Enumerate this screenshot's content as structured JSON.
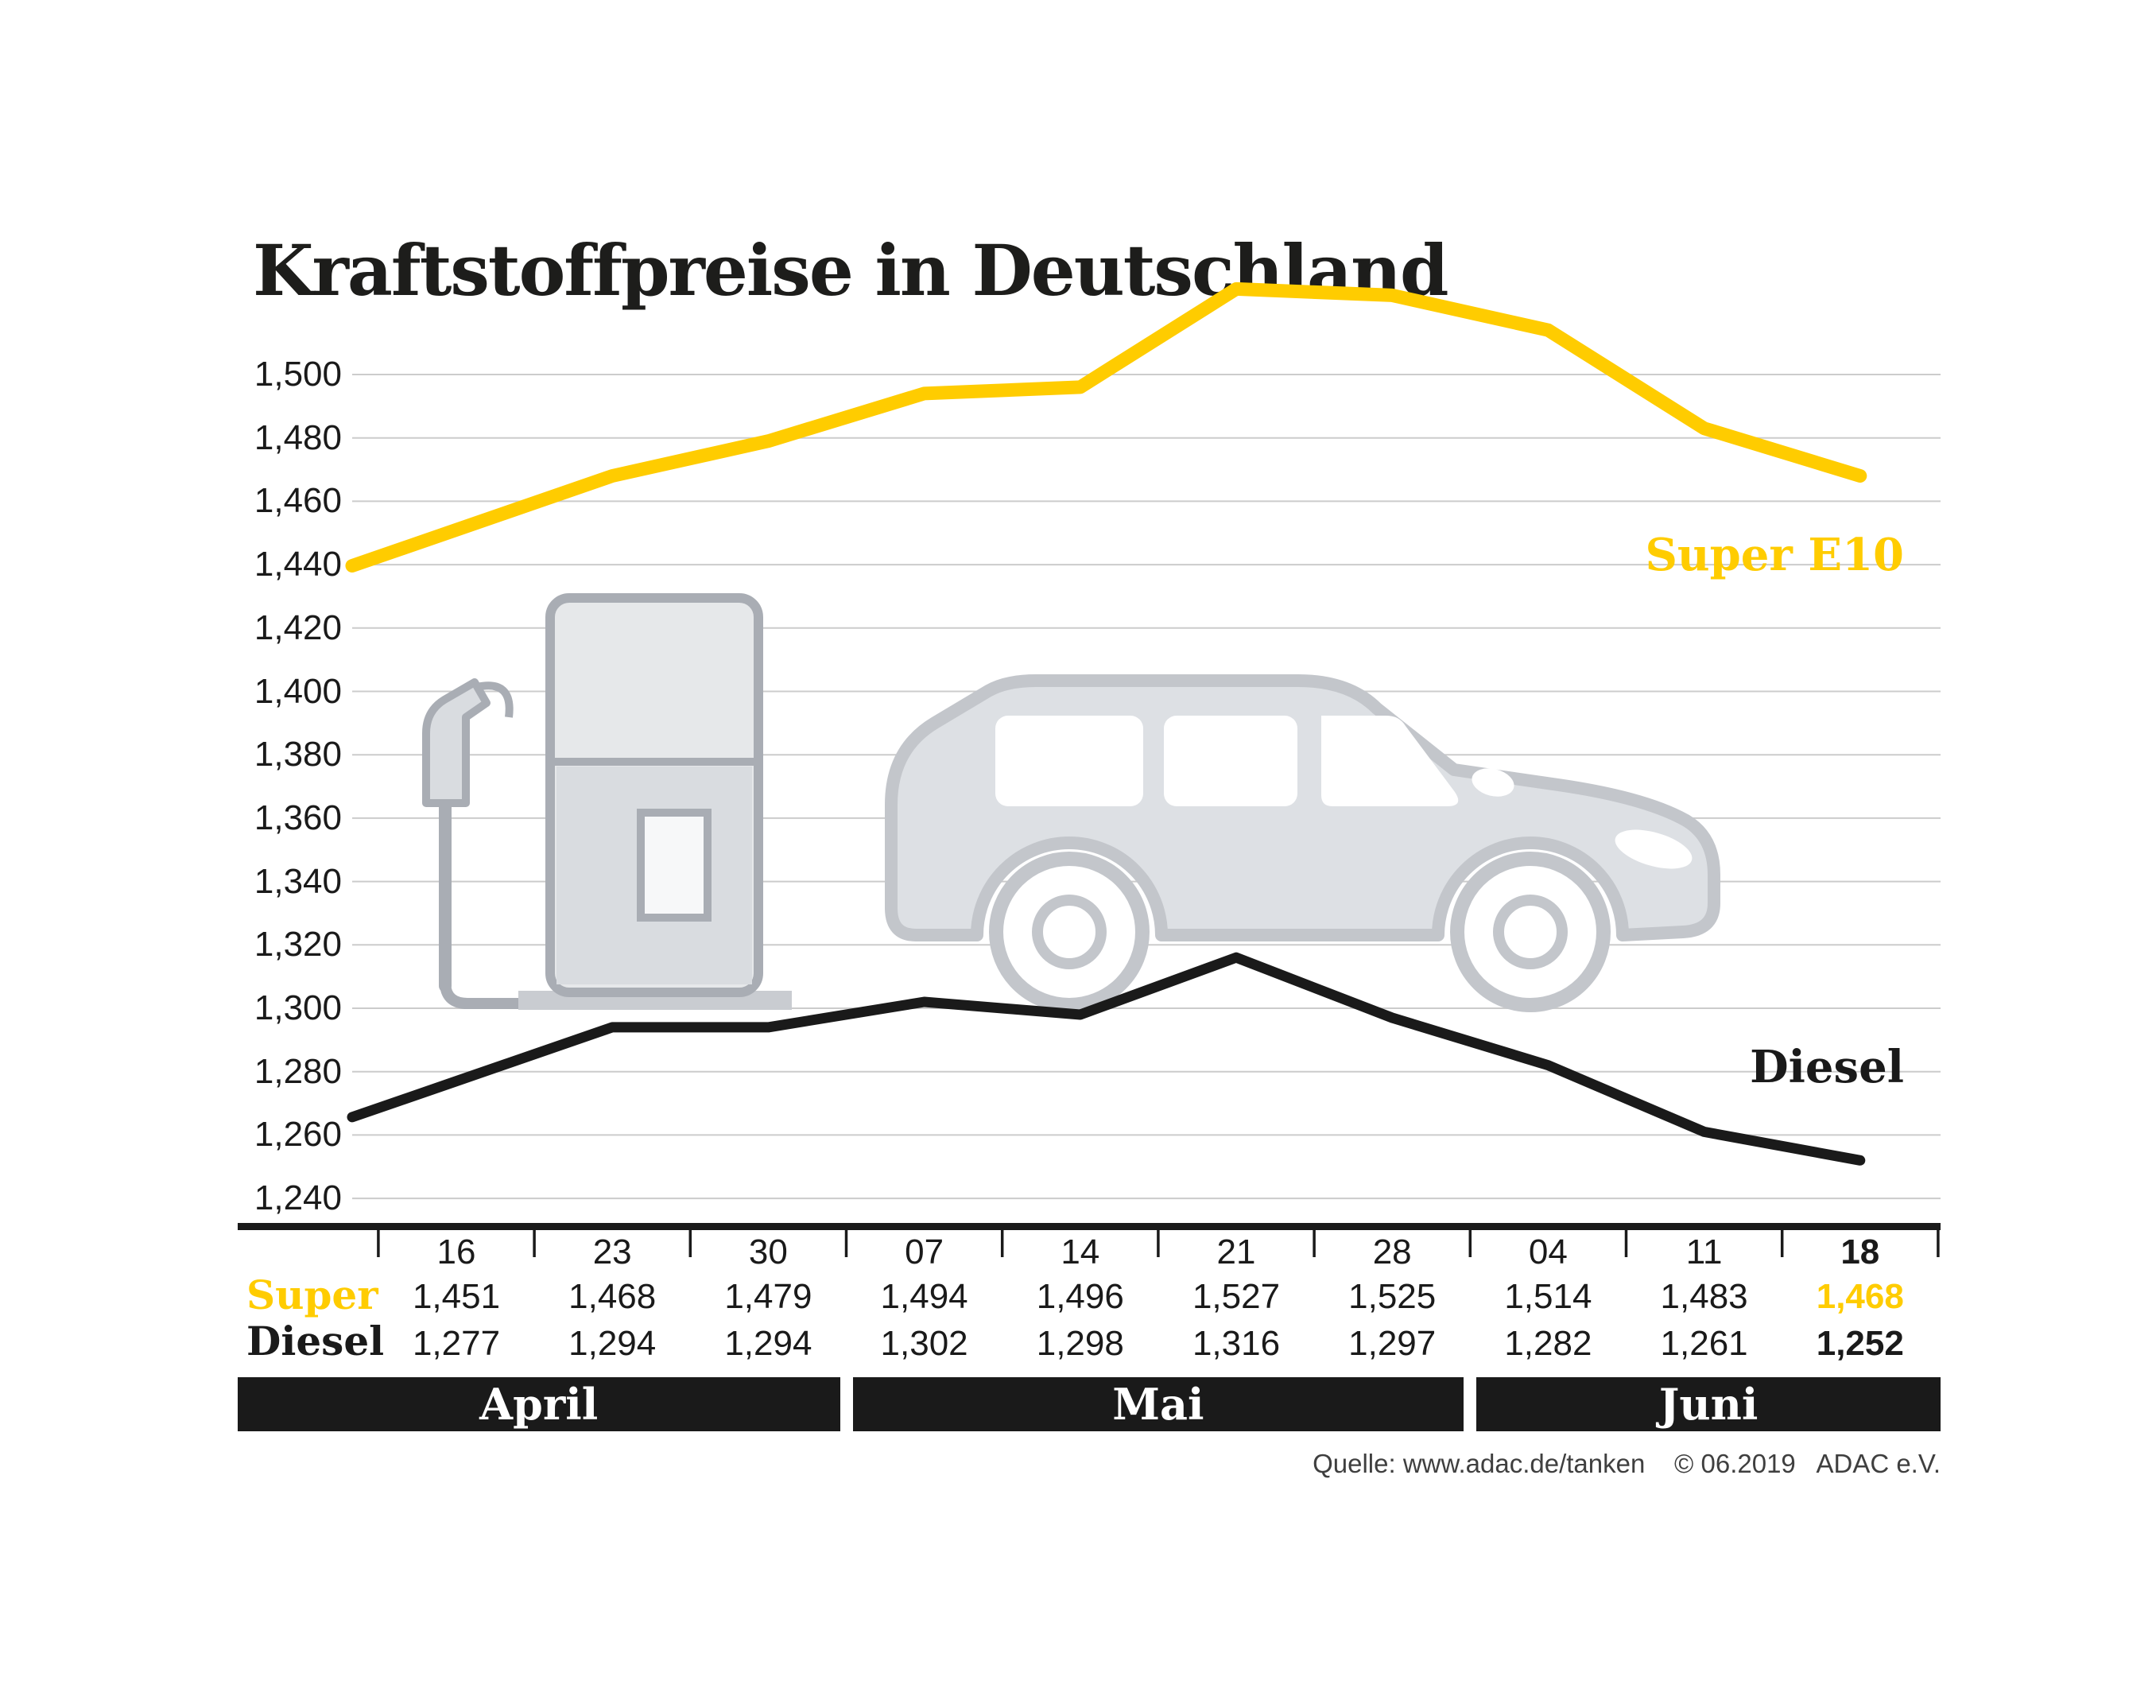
{
  "title": "Kraftstoffpreise in Deutschland",
  "source": "Quelle: www.adac.de/tanken    © 06.2019   ADAC e.V.",
  "labels": {
    "super_series": "Super E10",
    "diesel_series": "Diesel",
    "super_row": "Super",
    "diesel_row": "Diesel"
  },
  "colors": {
    "super": "#FFCC00",
    "diesel": "#1A1A1A",
    "grid": "#CCCCCC",
    "axis": "#1A1A1A",
    "band_bg": "#1A1A1A",
    "band_text": "#FFFFFF",
    "art_fill": "#DDE0E4",
    "art_stroke": "#C3C6CB"
  },
  "chart_data": {
    "type": "line",
    "title": "Kraftstoffpreise in Deutschland",
    "categories": [
      "16",
      "23",
      "30",
      "07",
      "14",
      "21",
      "28",
      "04",
      "11",
      "18"
    ],
    "y_ticks": [
      "1,500",
      "1,480",
      "1,460",
      "1,440",
      "1,420",
      "1,400",
      "1,380",
      "1,360",
      "1,340",
      "1,320",
      "1,300",
      "1,280",
      "1,260",
      "1,240"
    ],
    "ylim": [
      1.24,
      1.5
    ],
    "ytick_step": 0.02,
    "grid": true,
    "legend_position": "inline-right",
    "emphasis_last_column": true,
    "series": [
      {
        "name": "Super E10",
        "color": "#FFCC00",
        "values": [
          1.451,
          1.468,
          1.479,
          1.494,
          1.496,
          1.527,
          1.525,
          1.514,
          1.483,
          1.468
        ],
        "display": [
          "1,451",
          "1,468",
          "1,479",
          "1,494",
          "1,496",
          "1,527",
          "1,525",
          "1,514",
          "1,483",
          "1,468"
        ]
      },
      {
        "name": "Diesel",
        "color": "#1A1A1A",
        "values": [
          1.277,
          1.294,
          1.294,
          1.302,
          1.298,
          1.316,
          1.297,
          1.282,
          1.261,
          1.252
        ],
        "display": [
          "1,277",
          "1,294",
          "1,294",
          "1,302",
          "1,298",
          "1,316",
          "1,297",
          "1,282",
          "1,261",
          "1,252"
        ]
      }
    ],
    "months": [
      {
        "label": "April",
        "cols": 3
      },
      {
        "label": "Mai",
        "cols": 4
      },
      {
        "label": "Juni",
        "cols": 3
      }
    ]
  }
}
